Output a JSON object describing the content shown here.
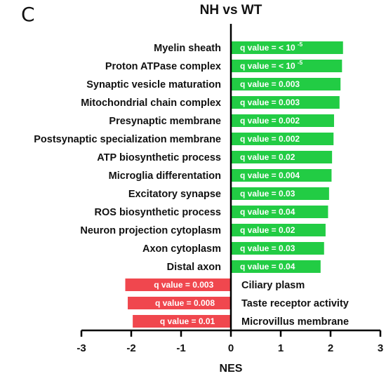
{
  "panel_label": "C",
  "chart_data": {
    "type": "bar",
    "orientation": "horizontal",
    "title": "NH vs WT",
    "xlabel": "NES",
    "ylabel": "",
    "xlim": [
      -3,
      3
    ],
    "x_ticks": [
      "-3",
      "-2",
      "-1",
      "0",
      "1",
      "2",
      "3"
    ],
    "grid": false,
    "colors": {
      "positive": "#22cc44",
      "negative": "#f0474e"
    },
    "categories": [
      "Myelin sheath",
      "Proton ATPase complex",
      "Synaptic vesicle maturation",
      "Mitochondrial chain complex",
      "Presynaptic membrane",
      "Postsynaptic specialization membrane",
      "ATP biosynthetic process",
      "Microglia differentation",
      "Excitatory synapse",
      "ROS biosynthetic process",
      "Neuron projection cytoplasm",
      "Axon cytoplasm",
      "Distal axon",
      "Ciliary plasm",
      "Taste receptor activity",
      "Microvillus membrane"
    ],
    "values": [
      2.25,
      2.23,
      2.2,
      2.18,
      2.07,
      2.06,
      2.03,
      2.02,
      1.97,
      1.95,
      1.9,
      1.87,
      1.8,
      -2.12,
      -2.07,
      -1.97
    ],
    "q_labels": [
      "q value = < 10",
      "q value = < 10",
      "q value = 0.003",
      "q value = 0.003",
      "q value = 0.002",
      "q value = 0.002",
      "q value = 0.02",
      "q value = 0.004",
      "q value = 0.03",
      "q value = 0.04",
      "q value = 0.02",
      "q value = 0.03",
      "q value = 0.04",
      "q value = 0.003",
      "q value = 0.008",
      "q value = 0.01"
    ],
    "q_superscripts": [
      "-5",
      "-5",
      "",
      "",
      "",
      "",
      "",
      "",
      "",
      "",
      "",
      "",
      "",
      "",
      "",
      ""
    ]
  }
}
